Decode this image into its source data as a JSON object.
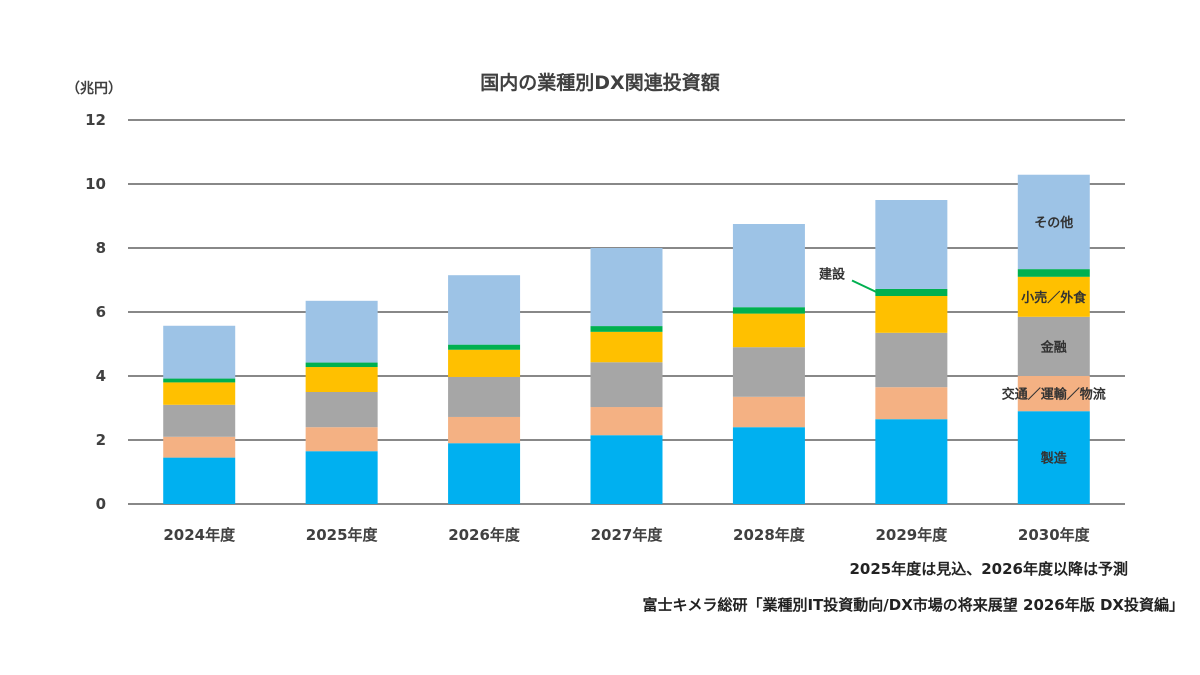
{
  "chart_data": {
    "type": "bar",
    "stacked": true,
    "title": "国内の業種別DX関連投資額",
    "unit_label": "（兆円）",
    "ylim": [
      0,
      12
    ],
    "yticks": [
      0,
      2,
      4,
      6,
      8,
      10,
      12
    ],
    "grid": true,
    "categories": [
      "2024年度",
      "2025年度",
      "2026年度",
      "2027年度",
      "2028年度",
      "2029年度",
      "2030年度"
    ],
    "series": [
      {
        "name": "製造",
        "color": "#00B0F0",
        "values": [
          1.45,
          1.65,
          1.9,
          2.15,
          2.4,
          2.65,
          2.9
        ]
      },
      {
        "name": "交通／運輸／物流",
        "color": "#F4B183",
        "values": [
          0.65,
          0.75,
          0.82,
          0.88,
          0.95,
          1.0,
          1.1
        ]
      },
      {
        "name": "金融",
        "color": "#A6A6A6",
        "values": [
          1.0,
          1.1,
          1.25,
          1.4,
          1.55,
          1.7,
          1.85
        ]
      },
      {
        "name": "小売／外食",
        "color": "#FFC000",
        "values": [
          0.7,
          0.78,
          0.85,
          0.95,
          1.05,
          1.15,
          1.25
        ]
      },
      {
        "name": "建設",
        "color": "#00B050",
        "values": [
          0.12,
          0.14,
          0.16,
          0.18,
          0.2,
          0.22,
          0.24
        ]
      },
      {
        "name": "その他",
        "color": "#9DC3E6",
        "values": [
          1.65,
          1.93,
          2.17,
          2.44,
          2.6,
          2.78,
          2.95
        ]
      }
    ],
    "series_label_category": "2030年度",
    "callout_series": "建設",
    "callout_category": "2029年度",
    "note": "2025年度は見込、2026年度以降は予測",
    "source": "富士キメラ総研「業種別IT投資動向/DX市場の将来展望 2026年版 DX投資編」"
  }
}
